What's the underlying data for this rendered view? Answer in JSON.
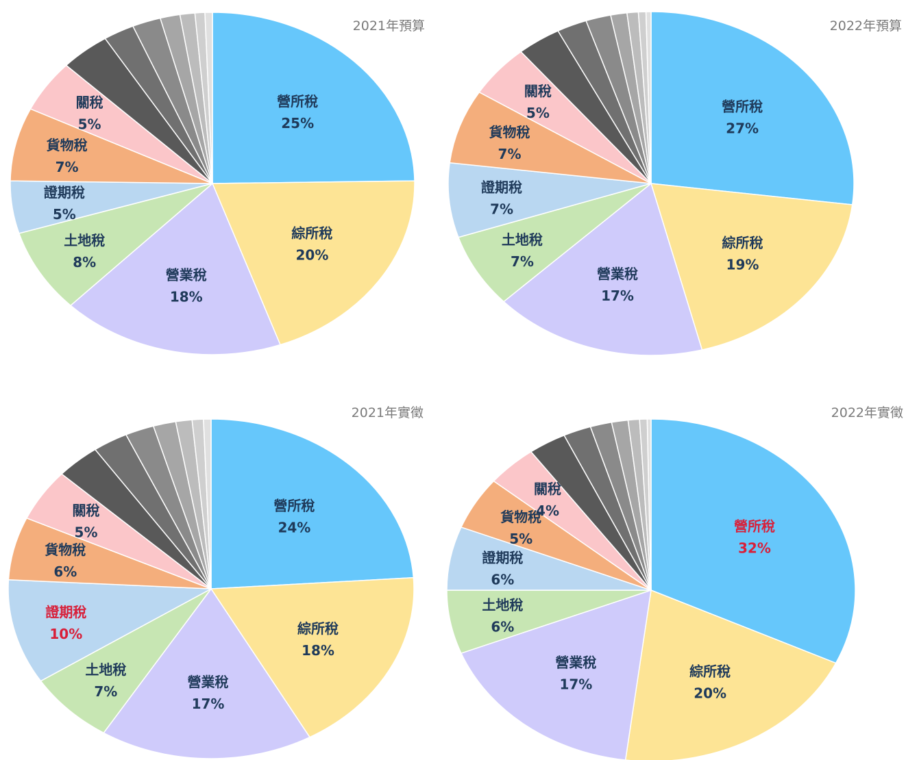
{
  "chart_data": [
    {
      "type": "pie",
      "title": "2021年預算",
      "slices": [
        {
          "label": "營所稅",
          "pct_label": "25%",
          "value": 25,
          "color": "#66c7fb",
          "text_color": "#1f3a5a"
        },
        {
          "label": "綜所稅",
          "pct_label": "20%",
          "value": 20,
          "color": "#fde495",
          "text_color": "#1f3a5a"
        },
        {
          "label": "營業稅",
          "pct_label": "18%",
          "value": 18,
          "color": "#cfcbfb",
          "text_color": "#1f3a5a"
        },
        {
          "label": "土地稅",
          "pct_label": "8%",
          "value": 8,
          "color": "#c7e6b3",
          "text_color": "#1f3a5a"
        },
        {
          "label": "證期稅",
          "pct_label": "5%",
          "value": 5,
          "color": "#b9d7f1",
          "text_color": "#1f3a5a"
        },
        {
          "label": "貨物稅",
          "pct_label": "7%",
          "value": 7,
          "color": "#f4ae7c",
          "text_color": "#1f3a5a"
        },
        {
          "label": "關稅",
          "pct_label": "5%",
          "value": 5,
          "color": "#fbc6c9",
          "text_color": "#1f3a5a"
        },
        {
          "label": "",
          "pct_label": "",
          "value": 4,
          "color": "#595959"
        },
        {
          "label": "",
          "pct_label": "",
          "value": 2.5,
          "color": "#707070"
        },
        {
          "label": "",
          "pct_label": "",
          "value": 2.3,
          "color": "#8a8a8a"
        },
        {
          "label": "",
          "pct_label": "",
          "value": 1.6,
          "color": "#a6a6a6"
        },
        {
          "label": "",
          "pct_label": "",
          "value": 1.2,
          "color": "#bcbcbc"
        },
        {
          "label": "",
          "pct_label": "",
          "value": 0.8,
          "color": "#cfcfcf"
        },
        {
          "label": "",
          "pct_label": "",
          "value": 0.6,
          "color": "#e0e0e0"
        }
      ]
    },
    {
      "type": "pie",
      "title": "2022年預算",
      "slices": [
        {
          "label": "營所稅",
          "pct_label": "27%",
          "value": 27,
          "color": "#66c7fb",
          "text_color": "#1f3a5a"
        },
        {
          "label": "綜所稅",
          "pct_label": "19%",
          "value": 19,
          "color": "#fde495",
          "text_color": "#1f3a5a"
        },
        {
          "label": "營業稅",
          "pct_label": "17%",
          "value": 17,
          "color": "#cfcbfb",
          "text_color": "#1f3a5a"
        },
        {
          "label": "土地稅",
          "pct_label": "7%",
          "value": 7,
          "color": "#c7e6b3",
          "text_color": "#1f3a5a"
        },
        {
          "label": "證期稅",
          "pct_label": "7%",
          "value": 7,
          "color": "#b9d7f1",
          "text_color": "#1f3a5a"
        },
        {
          "label": "貨物稅",
          "pct_label": "7%",
          "value": 7,
          "color": "#f4ae7c",
          "text_color": "#1f3a5a"
        },
        {
          "label": "關稅",
          "pct_label": "5%",
          "value": 5,
          "color": "#fbc6c9",
          "text_color": "#1f3a5a"
        },
        {
          "label": "",
          "pct_label": "",
          "value": 3.5,
          "color": "#595959"
        },
        {
          "label": "",
          "pct_label": "",
          "value": 2.4,
          "color": "#707070"
        },
        {
          "label": "",
          "pct_label": "",
          "value": 2.0,
          "color": "#8a8a8a"
        },
        {
          "label": "",
          "pct_label": "",
          "value": 1.3,
          "color": "#a6a6a6"
        },
        {
          "label": "",
          "pct_label": "",
          "value": 0.9,
          "color": "#bcbcbc"
        },
        {
          "label": "",
          "pct_label": "",
          "value": 0.6,
          "color": "#cfcfcf"
        },
        {
          "label": "",
          "pct_label": "",
          "value": 0.4,
          "color": "#e0e0e0"
        }
      ]
    },
    {
      "type": "pie",
      "title": "2021年實徵",
      "slices": [
        {
          "label": "營所稅",
          "pct_label": "24%",
          "value": 24,
          "color": "#66c7fb",
          "text_color": "#1f3a5a"
        },
        {
          "label": "綜所稅",
          "pct_label": "18%",
          "value": 18,
          "color": "#fde495",
          "text_color": "#1f3a5a"
        },
        {
          "label": "營業稅",
          "pct_label": "17%",
          "value": 17,
          "color": "#cfcbfb",
          "text_color": "#1f3a5a"
        },
        {
          "label": "土地稅",
          "pct_label": "7%",
          "value": 7,
          "color": "#c7e6b3",
          "text_color": "#1f3a5a"
        },
        {
          "label": "證期稅",
          "pct_label": "10%",
          "value": 10,
          "color": "#b9d7f1",
          "text_color": "#d8203a"
        },
        {
          "label": "貨物稅",
          "pct_label": "6%",
          "value": 6,
          "color": "#f4ae7c",
          "text_color": "#1f3a5a"
        },
        {
          "label": "關稅",
          "pct_label": "5%",
          "value": 5,
          "color": "#fbc6c9",
          "text_color": "#1f3a5a"
        },
        {
          "label": "",
          "pct_label": "",
          "value": 3.5,
          "color": "#595959"
        },
        {
          "label": "",
          "pct_label": "",
          "value": 2.8,
          "color": "#707070"
        },
        {
          "label": "",
          "pct_label": "",
          "value": 2.3,
          "color": "#8a8a8a"
        },
        {
          "label": "",
          "pct_label": "",
          "value": 1.8,
          "color": "#a6a6a6"
        },
        {
          "label": "",
          "pct_label": "",
          "value": 1.3,
          "color": "#bcbcbc"
        },
        {
          "label": "",
          "pct_label": "",
          "value": 0.9,
          "color": "#cfcfcf"
        },
        {
          "label": "",
          "pct_label": "",
          "value": 0.6,
          "color": "#e0e0e0"
        }
      ]
    },
    {
      "type": "pie",
      "title": "2022年實徵",
      "slices": [
        {
          "label": "營所稅",
          "pct_label": "32%",
          "value": 32,
          "color": "#66c7fb",
          "text_color": "#d8203a"
        },
        {
          "label": "綜所稅",
          "pct_label": "20%",
          "value": 20,
          "color": "#fde495",
          "text_color": "#1f3a5a"
        },
        {
          "label": "營業稅",
          "pct_label": "17%",
          "value": 17,
          "color": "#cfcbfb",
          "text_color": "#1f3a5a"
        },
        {
          "label": "土地稅",
          "pct_label": "6%",
          "value": 6,
          "color": "#c7e6b3",
          "text_color": "#1f3a5a"
        },
        {
          "label": "證期稅",
          "pct_label": "6%",
          "value": 6,
          "color": "#b9d7f1",
          "text_color": "#1f3a5a"
        },
        {
          "label": "貨物稅",
          "pct_label": "5%",
          "value": 5,
          "color": "#f4ae7c",
          "text_color": "#1f3a5a"
        },
        {
          "label": "關稅",
          "pct_label": "4%",
          "value": 4,
          "color": "#fbc6c9",
          "text_color": "#1f3a5a"
        },
        {
          "label": "",
          "pct_label": "",
          "value": 3.0,
          "color": "#595959"
        },
        {
          "label": "",
          "pct_label": "",
          "value": 2.2,
          "color": "#707070"
        },
        {
          "label": "",
          "pct_label": "",
          "value": 1.7,
          "color": "#8a8a8a"
        },
        {
          "label": "",
          "pct_label": "",
          "value": 1.3,
          "color": "#a6a6a6"
        },
        {
          "label": "",
          "pct_label": "",
          "value": 0.9,
          "color": "#bcbcbc"
        },
        {
          "label": "",
          "pct_label": "",
          "value": 0.6,
          "color": "#cfcfcf"
        },
        {
          "label": "",
          "pct_label": "",
          "value": 0.3,
          "color": "#e0e0e0"
        }
      ]
    }
  ]
}
